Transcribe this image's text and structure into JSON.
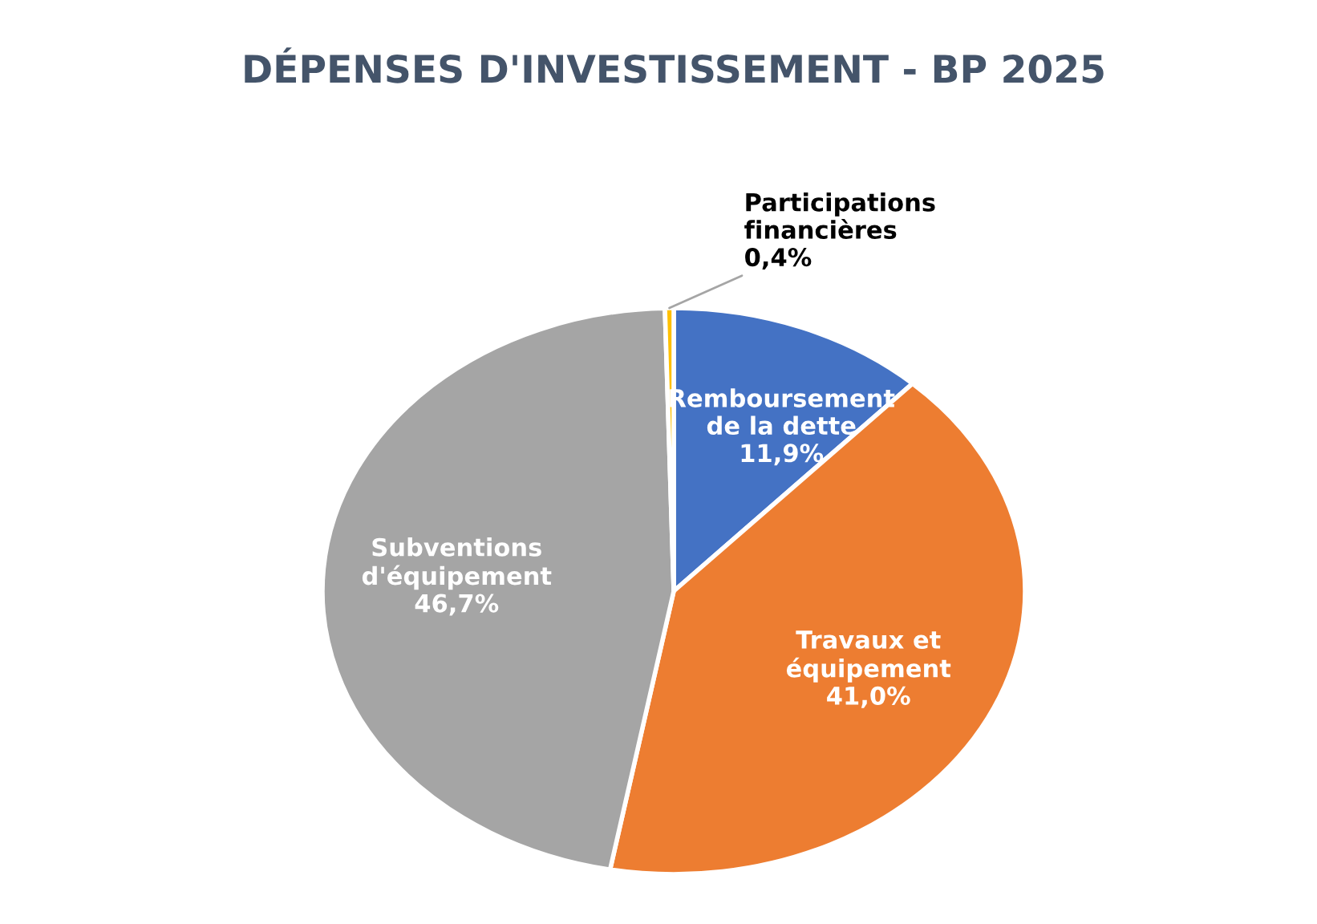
{
  "chart_data": {
    "type": "pie",
    "title": "DÉPENSES D'INVESTISSEMENT - BP 2025",
    "categories": [
      "Remboursement\nde la dette",
      "Travaux et\néquipement",
      "Subventions\nd'équipement",
      "Participations\nfinancières"
    ],
    "values": [
      11.9,
      41.0,
      46.7,
      0.4
    ],
    "colors": [
      "#4472c4",
      "#ed7d31",
      "#a5a5a5",
      "#ffc000"
    ],
    "value_labels": [
      "11,9%",
      "41,0%",
      "46,7%",
      "0,4%"
    ]
  }
}
